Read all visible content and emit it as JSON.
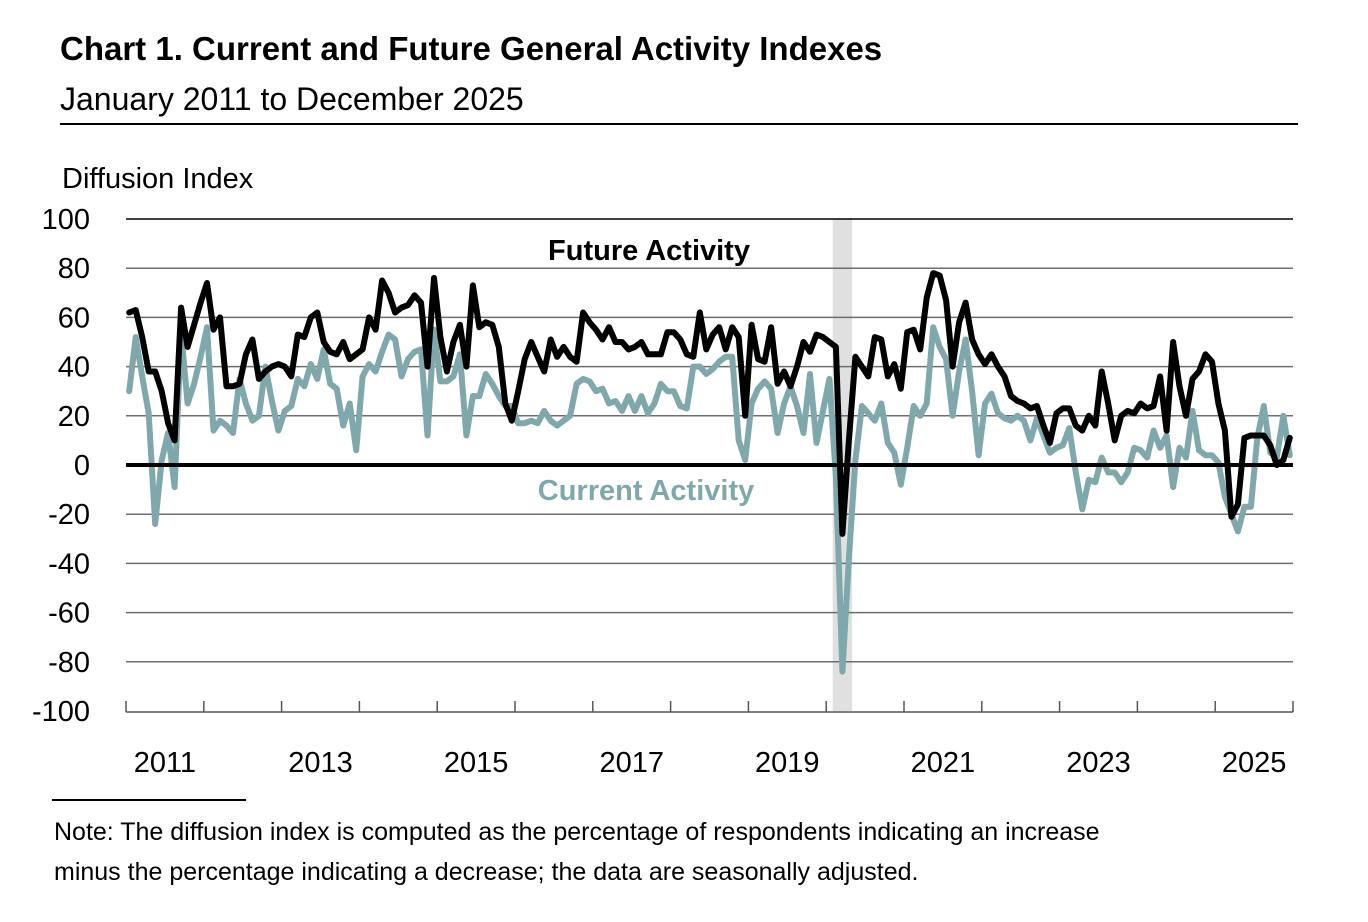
{
  "chart_data": {
    "type": "line",
    "title": "Chart 1. Current and Future General Activity Indexes",
    "subtitle": "January 2011 to December 2025",
    "ylabel": "Diffusion Index",
    "xlabel": "",
    "ylim": [
      -100,
      100
    ],
    "yticks": [
      "100",
      "80",
      "60",
      "40",
      "20",
      "0",
      "-20",
      "-40",
      "-60",
      "-80",
      "-100"
    ],
    "xlim": [
      "2011-01",
      "2025-12"
    ],
    "xtick_labels": [
      "2011",
      "2013",
      "2015",
      "2017",
      "2019",
      "2021",
      "2023",
      "2025"
    ],
    "frequency": "monthly",
    "grid": "horizontal",
    "shaded_period": [
      "2020-02",
      "2020-04"
    ],
    "series": [
      {
        "name": "Future Activity",
        "color": "#000000",
        "values": [
          62,
          63,
          52,
          38,
          38,
          30,
          17,
          10,
          64,
          48,
          57,
          66,
          74,
          55,
          60,
          32,
          32,
          33,
          45,
          51,
          35,
          38,
          40,
          41,
          40,
          36,
          53,
          52,
          60,
          62,
          50,
          46,
          45,
          50,
          43,
          45,
          47,
          60,
          55,
          75,
          70,
          62,
          64,
          65,
          69,
          66,
          40,
          76,
          52,
          38,
          50,
          57,
          40,
          73,
          56,
          58,
          57,
          48,
          25,
          18,
          30,
          43,
          50,
          44,
          38,
          51,
          44,
          48,
          44,
          42,
          62,
          58,
          55,
          51,
          56,
          50,
          50,
          47,
          48,
          50,
          45,
          45,
          45,
          54,
          54,
          51,
          45,
          44,
          62,
          47,
          53,
          56,
          47,
          56,
          52,
          20,
          57,
          43,
          42,
          56,
          33,
          38,
          32,
          40,
          50,
          46,
          53,
          52,
          50,
          48,
          -28,
          10,
          44,
          40,
          36,
          52,
          51,
          36,
          41,
          31,
          54,
          55,
          47,
          68,
          78,
          77,
          67,
          40,
          58,
          66,
          51,
          45,
          41,
          45,
          40,
          36,
          28,
          26,
          25,
          23,
          24,
          16,
          9,
          21,
          23,
          23,
          16,
          14,
          20,
          16,
          38,
          25,
          10,
          20,
          22,
          21,
          25,
          23,
          24,
          36,
          14,
          50,
          32,
          20,
          35,
          38,
          45,
          42,
          25,
          14,
          -21,
          -16,
          11,
          12,
          12,
          12,
          8,
          0,
          2,
          11
        ]
      },
      {
        "name": "Current Activity",
        "color": "#7fa8ad",
        "values": [
          30,
          52,
          36,
          21,
          -24,
          2,
          13,
          -9,
          54,
          25,
          33,
          44,
          56,
          14,
          18,
          16,
          13,
          35,
          25,
          18,
          20,
          40,
          26,
          14,
          22,
          24,
          35,
          32,
          41,
          35,
          47,
          33,
          31,
          16,
          25,
          6,
          36,
          41,
          38,
          46,
          53,
          51,
          36,
          43,
          46,
          47,
          12,
          55,
          34,
          34,
          36,
          45,
          12,
          28,
          28,
          37,
          33,
          28,
          24,
          24,
          17,
          17,
          18,
          17,
          22,
          18,
          16,
          18,
          20,
          33,
          35,
          34,
          30,
          31,
          25,
          26,
          22,
          28,
          22,
          28,
          21,
          25,
          33,
          30,
          30,
          24,
          23,
          40,
          40,
          37,
          39,
          42,
          44,
          44,
          10,
          2,
          25,
          31,
          34,
          31,
          13,
          25,
          32,
          24,
          13,
          37,
          9,
          22,
          35,
          -5,
          -84,
          -38,
          2,
          24,
          21,
          18,
          25,
          9,
          5,
          -8,
          7,
          24,
          20,
          25,
          56,
          48,
          43,
          20,
          38,
          51,
          30,
          4,
          25,
          29,
          21,
          19,
          18,
          20,
          18,
          10,
          19,
          12,
          5,
          7,
          8,
          15,
          -3,
          -18,
          -6,
          -7,
          3,
          -3,
          -3,
          -7,
          -3,
          7,
          6,
          3,
          14,
          7,
          12,
          -9,
          7,
          3,
          22,
          6,
          4,
          4,
          1,
          -13,
          -20,
          -27,
          -17,
          -17,
          11,
          24,
          5,
          3,
          20,
          4
        ]
      }
    ],
    "shade_color": "#e0e0e0",
    "note": [
      "Note: The diffusion index is computed as the percentage of respondents indicating an increase",
      "minus the percentage indicating a decrease; the data are seasonally adjusted."
    ]
  }
}
